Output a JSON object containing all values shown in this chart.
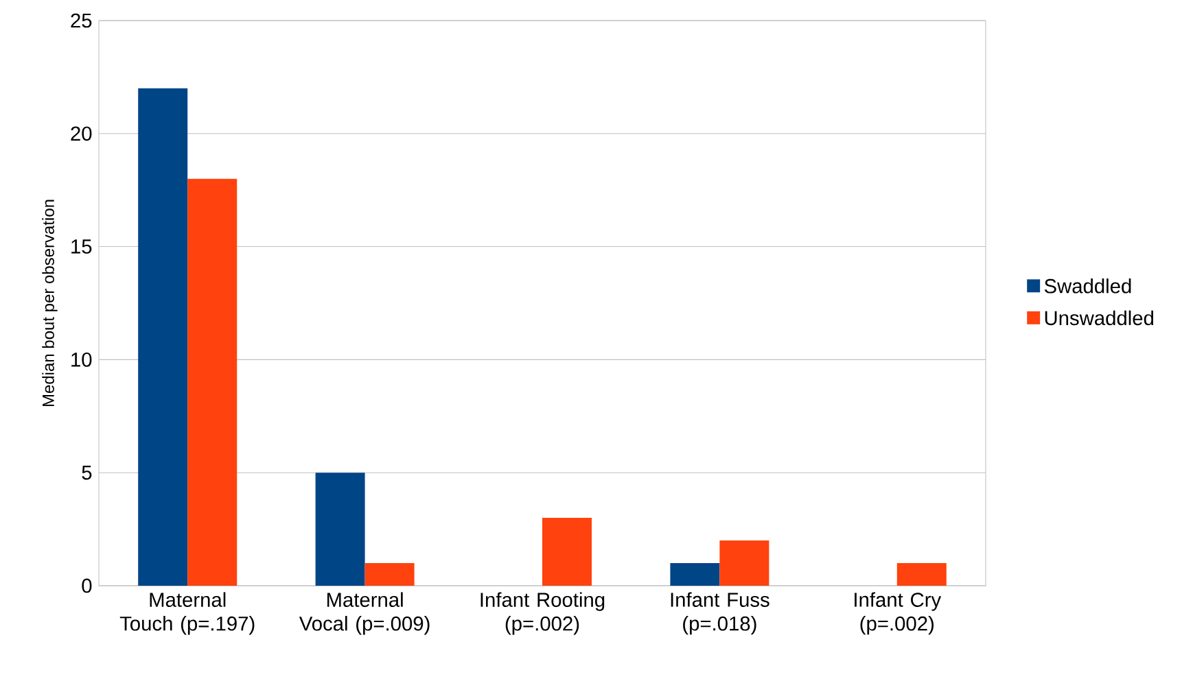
{
  "chart_data": {
    "type": "bar",
    "ylabel": "Median bout per observation",
    "categories": [
      "Maternal Touch (p=.197)",
      "Maternal Vocal (p=.009)",
      "Infant Rooting (p=.002)",
      "Infant Fuss (p=.018)",
      "Infant Cry (p=.002)"
    ],
    "series": [
      {
        "name": "Swaddled",
        "color": "#004586",
        "values": [
          22,
          5,
          0,
          1,
          0
        ]
      },
      {
        "name": "Unswaddled",
        "color": "#ff420e",
        "values": [
          18,
          1,
          3,
          2,
          1
        ]
      }
    ],
    "ylim": [
      0,
      25
    ],
    "yticks": [
      0,
      5,
      10,
      15,
      20,
      25
    ],
    "grid": "y",
    "legend": "right"
  }
}
